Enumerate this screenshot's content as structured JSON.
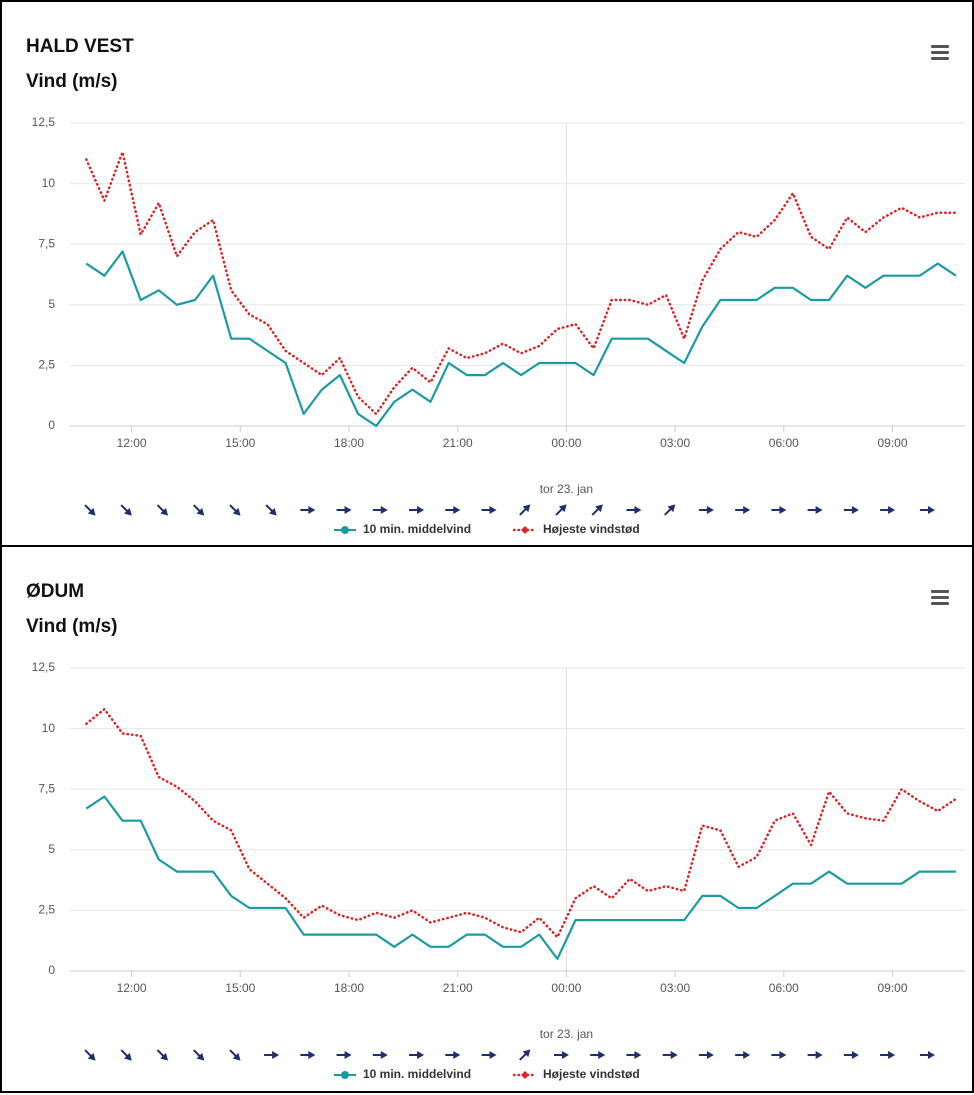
{
  "chart_data": [
    {
      "type": "line",
      "title": "HALD VEST",
      "subtitle": "Vind (m/s)",
      "x": [
        10.75,
        11.25,
        11.75,
        12.25,
        12.75,
        13.25,
        13.75,
        14.25,
        14.75,
        15.25,
        15.75,
        16.25,
        16.75,
        17.25,
        17.75,
        18.25,
        18.75,
        19.25,
        19.75,
        20.25,
        20.75,
        21.25,
        21.75,
        22.25,
        22.75,
        23.25,
        23.75,
        24.25,
        24.75,
        25.25,
        25.75,
        26.25,
        26.75,
        27.25,
        27.75,
        28.25,
        28.75,
        29.25,
        29.75,
        30.25,
        30.75,
        31.25,
        31.75,
        32.25,
        32.75,
        33.25,
        33.75,
        34.25,
        34.75
      ],
      "series": [
        {
          "name": "10 min. middelvind",
          "color": "#1a9ba1",
          "values": [
            6.7,
            6.2,
            7.2,
            5.2,
            5.6,
            5.0,
            5.2,
            6.2,
            3.6,
            3.6,
            3.1,
            2.6,
            0.5,
            1.5,
            2.1,
            0.5,
            0,
            1.0,
            1.5,
            1.0,
            2.6,
            2.1,
            2.1,
            2.6,
            2.1,
            2.6,
            2.6,
            2.6,
            2.1,
            3.6,
            3.6,
            3.6,
            3.1,
            2.6,
            4.1,
            5.2,
            5.2,
            5.2,
            5.7,
            5.7,
            5.2,
            5.2,
            6.2,
            5.7,
            6.2,
            6.2,
            6.2,
            6.7,
            6.2
          ]
        },
        {
          "name": "Højeste vindstød",
          "color": "#d62728",
          "values": [
            11.0,
            9.3,
            11.3,
            7.9,
            9.2,
            7.0,
            8.0,
            8.5,
            5.6,
            4.6,
            4.2,
            3.1,
            2.6,
            2.1,
            2.8,
            1.2,
            0.5,
            1.6,
            2.4,
            1.8,
            3.2,
            2.8,
            3.0,
            3.4,
            3.0,
            3.3,
            4.0,
            4.2,
            3.2,
            5.2,
            5.2,
            5.0,
            5.4,
            3.6,
            6.0,
            7.3,
            8.0,
            7.8,
            8.5,
            9.6,
            7.8,
            7.3,
            8.6,
            8.0,
            8.6,
            9.0,
            8.6,
            8.8,
            8.8
          ]
        }
      ],
      "xlim": [
        10.3,
        35
      ],
      "ylim": [
        0,
        12.5
      ],
      "xticks": [
        {
          "value": 12,
          "label": "12:00"
        },
        {
          "value": 15,
          "label": "15:00"
        },
        {
          "value": 18,
          "label": "18:00"
        },
        {
          "value": 21,
          "label": "21:00"
        },
        {
          "value": 24,
          "label": "00:00"
        },
        {
          "value": 27,
          "label": "03:00"
        },
        {
          "value": 30,
          "label": "06:00"
        },
        {
          "value": 33,
          "label": "09:00"
        }
      ],
      "yticks": [
        0,
        {
          "value": 2.5,
          "label": "2,5"
        },
        5,
        {
          "value": 7.5,
          "label": "7,5"
        },
        10,
        {
          "value": 12.5,
          "label": "12,5"
        }
      ],
      "grid": true,
      "plot_line_x": 24,
      "date_label": "tor 23. jan",
      "wind_arrow_x": [
        10.85,
        11.85,
        12.85,
        13.85,
        14.85,
        15.85,
        16.85,
        17.85,
        18.85,
        19.85,
        20.85,
        21.85,
        22.85,
        23.85,
        24.85,
        25.85,
        26.85,
        27.85,
        28.85,
        29.85,
        30.85,
        31.85,
        32.85,
        33.95
      ],
      "wind_arrow_angle": [
        45,
        45,
        45,
        45,
        45,
        45,
        0,
        0,
        0,
        0,
        0,
        0,
        -45,
        -45,
        -45,
        0,
        -45,
        0,
        0,
        0,
        0,
        0,
        0,
        0
      ],
      "arrow_color": "#1f2f6e"
    },
    {
      "type": "line",
      "title": "ØDUM",
      "subtitle": "Vind (m/s)",
      "x": [
        10.75,
        11.25,
        11.75,
        12.25,
        12.75,
        13.25,
        13.75,
        14.25,
        14.75,
        15.25,
        15.75,
        16.25,
        16.75,
        17.25,
        17.75,
        18.25,
        18.75,
        19.25,
        19.75,
        20.25,
        20.75,
        21.25,
        21.75,
        22.25,
        22.75,
        23.25,
        23.75,
        24.25,
        24.75,
        25.25,
        25.75,
        26.25,
        26.75,
        27.25,
        27.75,
        28.25,
        28.75,
        29.25,
        29.75,
        30.25,
        30.75,
        31.25,
        31.75,
        32.25,
        32.75,
        33.25,
        33.75,
        34.25,
        34.75
      ],
      "series": [
        {
          "name": "10 min. middelvind",
          "color": "#1a9ba1",
          "values": [
            6.7,
            7.2,
            6.2,
            6.2,
            4.6,
            4.1,
            4.1,
            4.1,
            3.1,
            2.6,
            2.6,
            2.6,
            1.5,
            1.5,
            1.5,
            1.5,
            1.5,
            1.0,
            1.5,
            1.0,
            1.0,
            1.5,
            1.5,
            1.0,
            1.0,
            1.5,
            0.5,
            2.1,
            2.1,
            2.1,
            2.1,
            2.1,
            2.1,
            2.1,
            3.1,
            3.1,
            2.6,
            2.6,
            3.1,
            3.6,
            3.6,
            4.1,
            3.6,
            3.6,
            3.6,
            3.6,
            4.1,
            4.1,
            4.1
          ]
        },
        {
          "name": "Højeste vindstød",
          "color": "#d62728",
          "values": [
            10.2,
            10.8,
            9.8,
            9.7,
            8.0,
            7.6,
            7.0,
            6.2,
            5.8,
            4.2,
            3.6,
            3.0,
            2.2,
            2.7,
            2.3,
            2.1,
            2.4,
            2.2,
            2.5,
            2.0,
            2.2,
            2.4,
            2.2,
            1.8,
            1.6,
            2.2,
            1.4,
            3.0,
            3.5,
            3.0,
            3.8,
            3.3,
            3.5,
            3.3,
            6.0,
            5.8,
            4.3,
            4.7,
            6.2,
            6.5,
            5.2,
            7.4,
            6.5,
            6.3,
            6.2,
            7.5,
            7.0,
            6.6,
            7.1
          ]
        }
      ],
      "xlim": [
        10.3,
        35
      ],
      "ylim": [
        0,
        12.5
      ],
      "xticks": [
        {
          "value": 12,
          "label": "12:00"
        },
        {
          "value": 15,
          "label": "15:00"
        },
        {
          "value": 18,
          "label": "18:00"
        },
        {
          "value": 21,
          "label": "21:00"
        },
        {
          "value": 24,
          "label": "00:00"
        },
        {
          "value": 27,
          "label": "03:00"
        },
        {
          "value": 30,
          "label": "06:00"
        },
        {
          "value": 33,
          "label": "09:00"
        }
      ],
      "yticks": [
        0,
        {
          "value": 2.5,
          "label": "2,5"
        },
        5,
        {
          "value": 7.5,
          "label": "7,5"
        },
        10,
        {
          "value": 12.5,
          "label": "12,5"
        }
      ],
      "grid": true,
      "plot_line_x": 24,
      "date_label": "tor 23. jan",
      "wind_arrow_x": [
        10.85,
        11.85,
        12.85,
        13.85,
        14.85,
        15.85,
        16.85,
        17.85,
        18.85,
        19.85,
        20.85,
        21.85,
        22.85,
        23.85,
        24.85,
        25.85,
        26.85,
        27.85,
        28.85,
        29.85,
        30.85,
        31.85,
        32.85,
        33.95
      ],
      "wind_arrow_angle": [
        45,
        45,
        45,
        45,
        45,
        0,
        0,
        0,
        0,
        0,
        0,
        0,
        -45,
        0,
        0,
        0,
        0,
        0,
        0,
        0,
        0,
        0,
        0,
        0
      ],
      "arrow_color": "#1f2f6e"
    }
  ]
}
